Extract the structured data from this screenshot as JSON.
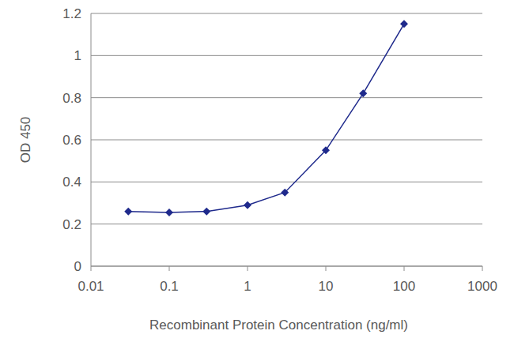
{
  "chart_data": {
    "type": "line",
    "x_label": "Recombinant Protein Concentration (ng/ml)",
    "y_label": "OD 450",
    "x": [
      0.03,
      0.1,
      0.3,
      1,
      3,
      10,
      30,
      100
    ],
    "series": [
      {
        "name": null,
        "color": "#1f2a8c",
        "marker": "diamond",
        "values": [
          0.26,
          0.255,
          0.26,
          0.29,
          0.35,
          0.55,
          0.82,
          1.15
        ]
      }
    ],
    "xlim": [
      0.01,
      1000
    ],
    "xticks": [
      0.01,
      0.1,
      1,
      10,
      100,
      1000
    ],
    "ylim": [
      0,
      1.2
    ],
    "yticks": [
      0,
      0.2,
      0.4,
      0.6,
      0.8,
      1,
      1.2
    ],
    "log": "x",
    "grid": true
  }
}
